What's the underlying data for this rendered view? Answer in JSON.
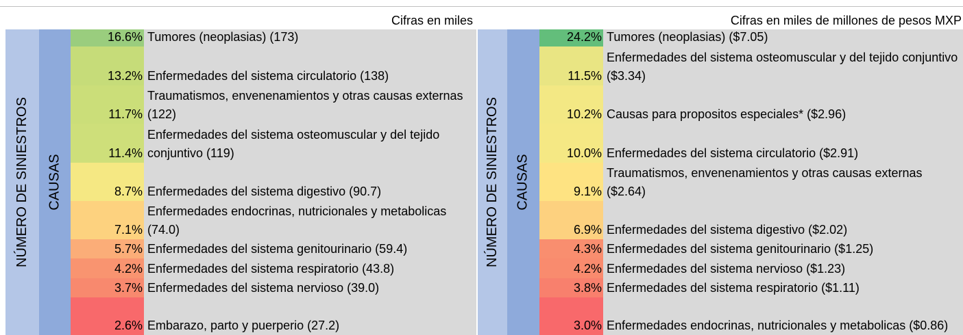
{
  "left": {
    "header": "Cifras en miles",
    "row_label": "NÚMERO DE SINIESTROS",
    "column_label": "CAUSAS",
    "rows": [
      {
        "percent": "16.6%",
        "label": "Tumores (neoplasias) (173)",
        "color": "#9acd7e"
      },
      {
        "percent": "13.2%",
        "label": "Enfermedades del sistema circulatorio (138)",
        "color": "#c6dc79"
      },
      {
        "percent": "11.7%",
        "label": "Traumatismos, envenenamientos y otras causas externas (122)",
        "color": "#cbde79"
      },
      {
        "percent": "11.4%",
        "label": "Enfermedades del sistema osteomuscular y del tejido conjuntivo (119)",
        "color": "#cedf7a"
      },
      {
        "percent": "8.7%",
        "label": "Enfermedades del sistema digestivo (90.7)",
        "color": "#f5e883"
      },
      {
        "percent": "7.1%",
        "label": "Enfermedades endocrinas, nutricionales y metabolicas (74.0)",
        "color": "#fdd27f"
      },
      {
        "percent": "5.7%",
        "label": "Enfermedades del sistema genitourinario (59.4)",
        "color": "#fbad78"
      },
      {
        "percent": "4.2%",
        "label": "Enfermedades del sistema respiratorio (43.8)",
        "color": "#f99470"
      },
      {
        "percent": "3.7%",
        "label": "Enfermedades del sistema nervioso (39.0)",
        "color": "#f8896e"
      },
      {
        "percent": "2.6%",
        "label": "Embarazo, parto y puerperio (27.2)",
        "color": "#f8696b"
      }
    ]
  },
  "right": {
    "header": "Cifras en miles de millones de pesos MXP",
    "row_label": "NÚMERO DE SINIESTROS",
    "column_label": "CAUSAS",
    "rows": [
      {
        "percent": "24.2%",
        "label": "Tumores (neoplasias) ($7.05)",
        "color": "#63be7b"
      },
      {
        "percent": "11.5%",
        "label": "Enfermedades del sistema osteomuscular y del tejido conjuntivo ($3.34)",
        "color": "#e9e583"
      },
      {
        "percent": "10.2%",
        "label": "Causas para propositos especiales* ($2.96)",
        "color": "#f3e884"
      },
      {
        "percent": "10.0%",
        "label": "Enfermedades del sistema circulatorio ($2.91)",
        "color": "#f5e884"
      },
      {
        "percent": "9.1%",
        "label": "Traumatismos, envenenamientos y otras causas externas ($2.64)",
        "color": "#fee382"
      },
      {
        "percent": "6.9%",
        "label": "Enfermedades del sistema digestivo ($2.02)",
        "color": "#fdd17f"
      },
      {
        "percent": "4.3%",
        "label": "Enfermedades del sistema genitourinario ($1.25)",
        "color": "#f98e6f"
      },
      {
        "percent": "4.2%",
        "label": "Enfermedades del sistema nervioso ($1.23)",
        "color": "#f98b6e"
      },
      {
        "percent": "3.8%",
        "label": "Enfermedades del sistema respiratorio ($1.11)",
        "color": "#f8806d"
      },
      {
        "percent": "3.0%",
        "label": "Enfermedades endocrinas, nutricionales y metabolicas ($0.86)",
        "color": "#f8696b"
      }
    ]
  }
}
